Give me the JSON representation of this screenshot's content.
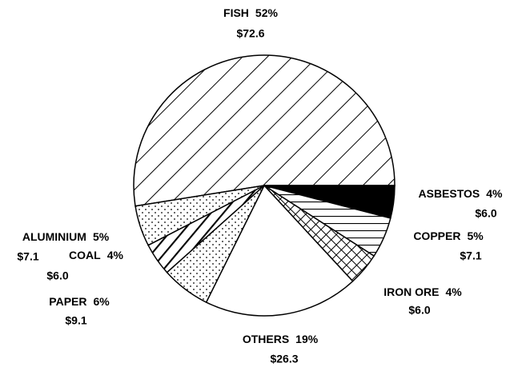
{
  "chart_data": {
    "type": "pie",
    "categories": [
      "FISH",
      "ASBESTOS",
      "COPPER",
      "IRON ORE",
      "OTHERS",
      "PAPER",
      "COAL",
      "ALUMINIUM"
    ],
    "values": [
      52,
      4,
      5,
      4,
      19,
      6,
      4,
      5
    ],
    "value_labels": [
      "52%",
      "4%",
      "5%",
      "4%",
      "19%",
      "6%",
      "4%",
      "5%"
    ],
    "amounts": [
      72.6,
      6.0,
      7.1,
      6.0,
      26.3,
      9.1,
      6.0,
      7.1
    ],
    "amount_labels": [
      "$72.6",
      "$6.0",
      "$7.1",
      "$6.0",
      "$26.3",
      "$9.1",
      "$6.0",
      "$7.1"
    ]
  }
}
